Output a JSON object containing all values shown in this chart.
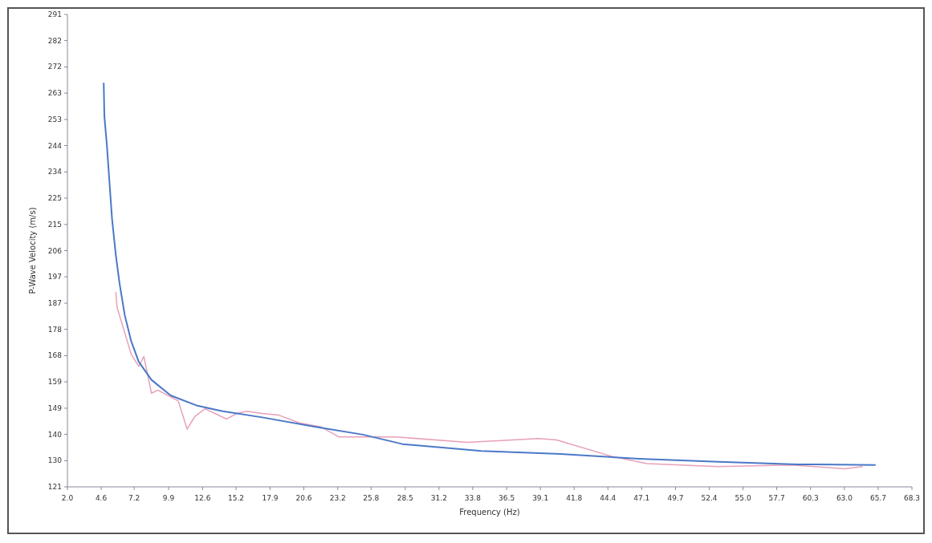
{
  "chart_data": {
    "type": "line",
    "xlabel": "Frequency (Hz)",
    "ylabel": "P-Wave Velocity (m/s)",
    "xlim": [
      2.0,
      68.3
    ],
    "ylim": [
      121,
      291
    ],
    "xticks": [
      {
        "value": 2.0,
        "label": "2.0"
      },
      {
        "value": 4.65,
        "label": "4.6"
      },
      {
        "value": 7.24,
        "label": "7.2"
      },
      {
        "value": 9.94,
        "label": "9.9"
      },
      {
        "value": 12.61,
        "label": "12.6"
      },
      {
        "value": 15.24,
        "label": "15.2"
      },
      {
        "value": 17.91,
        "label": "17.9"
      },
      {
        "value": 20.56,
        "label": "20.6"
      },
      {
        "value": 23.22,
        "label": "23.2"
      },
      {
        "value": 25.84,
        "label": "25.8"
      },
      {
        "value": 28.52,
        "label": "28.5"
      },
      {
        "value": 31.17,
        "label": "31.2"
      },
      {
        "value": 33.82,
        "label": "33.8"
      },
      {
        "value": 36.48,
        "label": "36.5"
      },
      {
        "value": 39.13,
        "label": "39.1"
      },
      {
        "value": 41.78,
        "label": "41.8"
      },
      {
        "value": 44.43,
        "label": "44.4"
      },
      {
        "value": 47.08,
        "label": "47.1"
      },
      {
        "value": 49.74,
        "label": "49.7"
      },
      {
        "value": 52.39,
        "label": "52.4"
      },
      {
        "value": 55.04,
        "label": "55.0"
      },
      {
        "value": 57.69,
        "label": "57.7"
      },
      {
        "value": 60.34,
        "label": "60.3"
      },
      {
        "value": 63.0,
        "label": "63.0"
      },
      {
        "value": 65.65,
        "label": "65.7"
      },
      {
        "value": 68.3,
        "label": "68.3"
      }
    ],
    "yticks": [
      121,
      {
        "value": 130.4,
        "label": "130"
      },
      {
        "value": 139.9,
        "label": "140"
      },
      {
        "value": 149.3,
        "label": "149"
      },
      {
        "value": 158.8,
        "label": "159"
      },
      {
        "value": 168.2,
        "label": "168"
      },
      {
        "value": 177.7,
        "label": "178"
      },
      {
        "value": 187.1,
        "label": "187"
      },
      {
        "value": 196.6,
        "label": "197"
      },
      206,
      {
        "value": 215.4,
        "label": "215"
      },
      {
        "value": 224.9,
        "label": "225"
      },
      {
        "value": 234.3,
        "label": "234"
      },
      {
        "value": 243.8,
        "label": "244"
      },
      {
        "value": 253.2,
        "label": "253"
      },
      {
        "value": 262.7,
        "label": "263"
      },
      {
        "value": 272.1,
        "label": "272"
      },
      {
        "value": 281.6,
        "label": "282"
      },
      291
    ],
    "series": [
      {
        "color": "#e8a0b8",
        "x": [
          5.8,
          5.9,
          7.0,
          7.6,
          8.0,
          8.6,
          9.1,
          10.7,
          11.4,
          12.0,
          12.8,
          14.5,
          15.3,
          16.1,
          17.3,
          18.6,
          20.2,
          21.9,
          23.3,
          24.6,
          27.7,
          33.4,
          39.0,
          40.4,
          44.7,
          47.5,
          53.1,
          58.8,
          63.0,
          64.4
        ],
        "values": [
          191,
          185.6,
          168.8,
          164.3,
          167.9,
          154.7,
          155.8,
          151.9,
          141.8,
          146.3,
          149.1,
          145.4,
          147.4,
          148.2,
          147.4,
          146.8,
          144,
          142.6,
          139,
          139,
          139,
          137,
          138.4,
          137.9,
          132,
          129.4,
          128.3,
          128.9,
          127.5,
          128.3
        ]
      },
      {
        "color": "#4a78c8",
        "x": [
          4.85,
          4.9,
          5.1,
          5.3,
          5.5,
          5.8,
          6.1,
          6.5,
          7.0,
          7.6,
          8.6,
          10.1,
          12.2,
          14.2,
          17.3,
          21.5,
          25.2,
          28.3,
          34.5,
          40.7,
          46.9,
          53.1,
          59.3,
          65.4
        ],
        "values": [
          266.2,
          254.4,
          243.8,
          230.6,
          217.6,
          204.4,
          194,
          182.8,
          173.5,
          166,
          159.5,
          153.9,
          150.2,
          148.2,
          146,
          142.6,
          139.8,
          136.4,
          133.9,
          132.8,
          131.1,
          130,
          129.1,
          128.9
        ]
      }
    ]
  }
}
